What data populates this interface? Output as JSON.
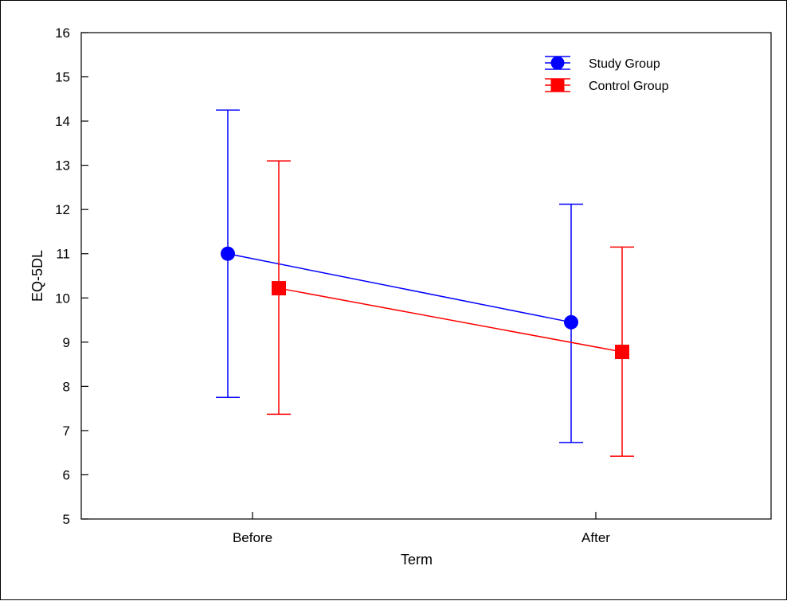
{
  "chart_data": {
    "type": "line",
    "title": "",
    "xlabel": "Term",
    "ylabel": "EQ-5DL",
    "categories": [
      "Before",
      "After"
    ],
    "ylim": [
      5,
      16
    ],
    "yticks": [
      5,
      6,
      7,
      8,
      9,
      10,
      11,
      12,
      13,
      14,
      15,
      16
    ],
    "grid": false,
    "legend_position": "top-right",
    "series": [
      {
        "name": "Study Group",
        "color": "#0000ff",
        "marker": "circle",
        "values": [
          11.0,
          9.45
        ],
        "lower": [
          7.75,
          6.73
        ],
        "upper": [
          14.25,
          12.12
        ]
      },
      {
        "name": "Control Group",
        "color": "#ff0000",
        "marker": "square",
        "values": [
          10.22,
          8.78
        ],
        "lower": [
          7.37,
          6.42
        ],
        "upper": [
          13.1,
          11.15
        ]
      }
    ]
  }
}
